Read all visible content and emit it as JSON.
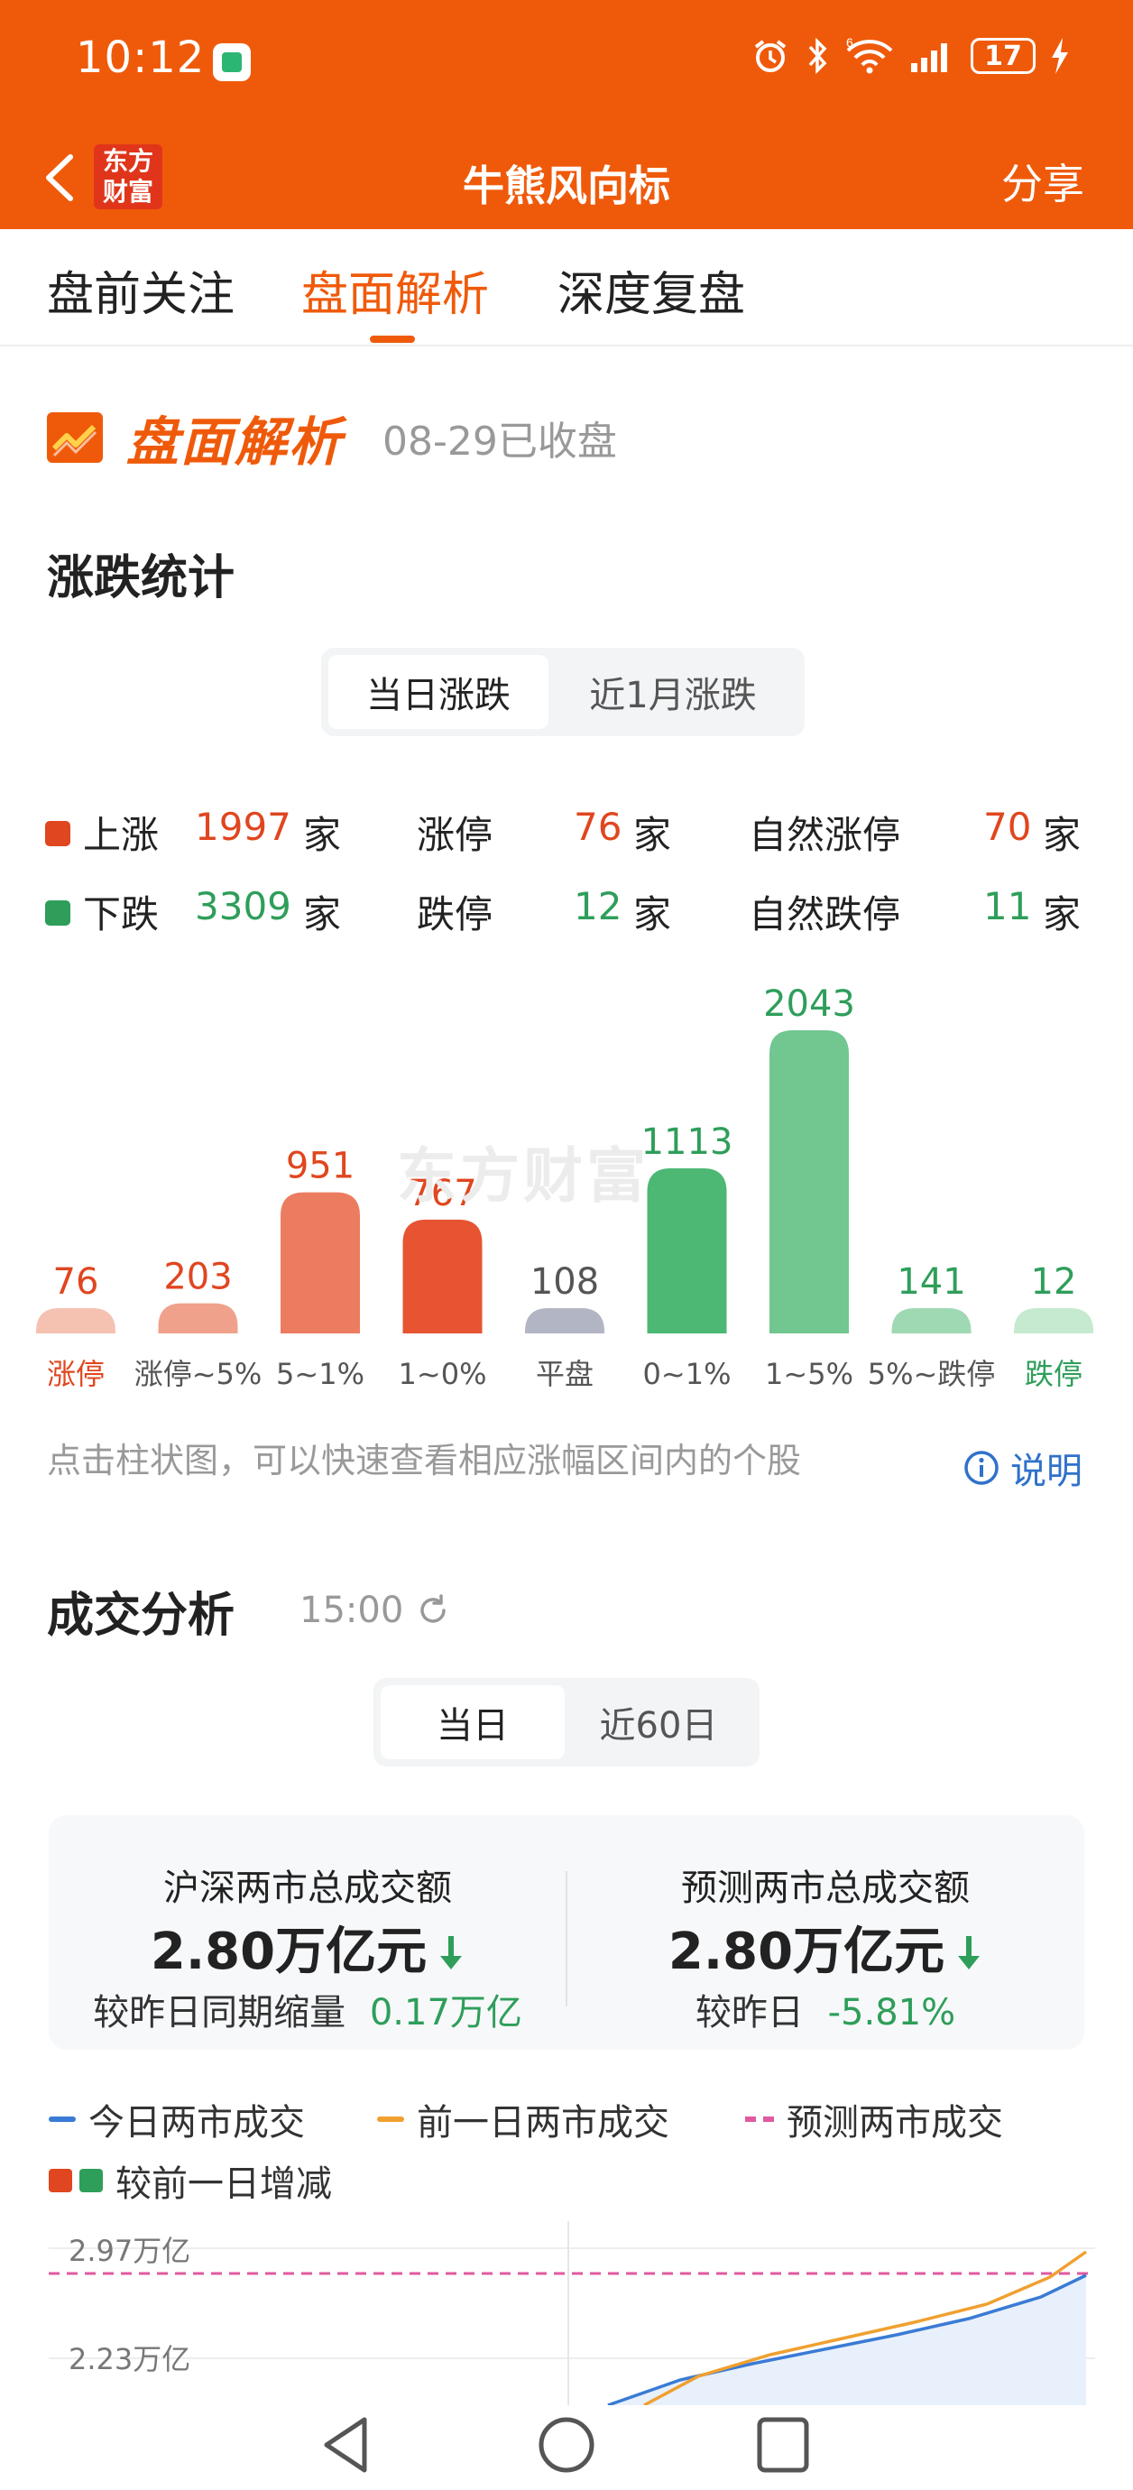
{
  "status": {
    "time": "10:12",
    "battery": "17",
    "network": "6"
  },
  "nav": {
    "title": "牛熊风向标",
    "share": "分享",
    "brand_line1": "东方",
    "brand_line2": "财富"
  },
  "tabs": [
    {
      "label": "盘前关注",
      "active": false
    },
    {
      "label": "盘面解析",
      "active": true
    },
    {
      "label": "深度复盘",
      "active": false
    }
  ],
  "header": {
    "title": "盘面解析",
    "subtitle": "08-29已收盘"
  },
  "rise_fall": {
    "title": "涨跌统计",
    "toggle": [
      "当日涨跌",
      "近1月涨跌"
    ],
    "up": {
      "label": "上涨",
      "count": "1997",
      "unit": "家",
      "limit_label": "涨停",
      "limit": "76",
      "natural_label": "自然涨停",
      "natural": "70"
    },
    "down": {
      "label": "下跌",
      "count": "3309",
      "unit": "家",
      "limit_label": "跌停",
      "limit": "12",
      "natural_label": "自然跌停",
      "natural": "11"
    },
    "colors": {
      "up": "#e0461f",
      "down": "#2e9e5a"
    }
  },
  "chart_data": {
    "type": "bar",
    "categories": [
      "涨停",
      "涨停~5%",
      "5~1%",
      "1~0%",
      "平盘",
      "0~1%",
      "1~5%",
      "5%~跌停",
      "跌停"
    ],
    "values": [
      76,
      203,
      951,
      767,
      108,
      1113,
      2043,
      141,
      12
    ],
    "watermark": "东方财富",
    "colors": [
      "#f5c2b2",
      "#f0a18b",
      "#ec7c60",
      "#e65432",
      "#b2b5c4",
      "#4cb874",
      "#72c690",
      "#9fd9b3",
      "#c5eacf"
    ],
    "label_colors": [
      "#e0461f",
      "#e0461f",
      "#e0461f",
      "#e0461f",
      "#555555",
      "#2e9e5a",
      "#2e9e5a",
      "#2e9e5a",
      "#2e9e5a"
    ],
    "category_colors": [
      "#e0461f",
      "#555555",
      "#555555",
      "#555555",
      "#555555",
      "#555555",
      "#555555",
      "#555555",
      "#2e9e5a"
    ]
  },
  "chart_hint": "点击柱状图，可以快速查看相应涨幅区间内的个股",
  "explain": "说明",
  "turnover": {
    "title": "成交分析",
    "time": "15:00",
    "toggle": [
      "当日",
      "近60日"
    ],
    "left": {
      "label": "沪深两市总成交额",
      "value": "2.80万亿元",
      "compare_label": "较昨日同期缩量",
      "compare_value": "0.17万亿"
    },
    "right": {
      "label": "预测两市总成交额",
      "value": "2.80万亿元",
      "compare_label": "较昨日",
      "compare_value": "-5.81%"
    },
    "legend": [
      "今日两市成交",
      "前一日两市成交",
      "预测两市成交",
      "较前一日增减"
    ],
    "legend_colors": {
      "today": "#3a7bd5",
      "prev": "#f0a030",
      "forecast": "#e05aa0"
    },
    "y_labels": [
      "2.97万亿",
      "2.23万亿"
    ]
  }
}
